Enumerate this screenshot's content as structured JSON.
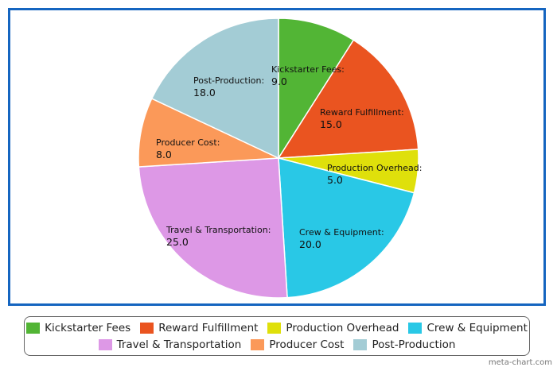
{
  "chart_data": {
    "type": "pie",
    "slices": [
      {
        "name": "Kickstarter Fees",
        "label": "Kickstarter Fees:",
        "value": 9.0,
        "value_text": "9.0",
        "color": "#52b535"
      },
      {
        "name": "Reward Fulfillment",
        "label": "Reward Fulfillment:",
        "value": 15.0,
        "value_text": "15.0",
        "color": "#ea5420"
      },
      {
        "name": "Production Overhead",
        "label": "Production Overhead:",
        "value": 5.0,
        "value_text": "5.0",
        "color": "#dfe00b"
      },
      {
        "name": "Crew & Equipment",
        "label": "Crew & Equipment:",
        "value": 20.0,
        "value_text": "20.0",
        "color": "#29c8e6"
      },
      {
        "name": "Travel & Transportation",
        "label": "Travel & Transportation:",
        "value": 25.0,
        "value_text": "25.0",
        "color": "#dd98e6"
      },
      {
        "name": "Producer Cost",
        "label": "Producer Cost:",
        "value": 8.0,
        "value_text": "8.0",
        "color": "#fb9959"
      },
      {
        "name": "Post-Production",
        "label": "Post-Production:",
        "value": 18.0,
        "value_text": "18.0",
        "color": "#a3ccd5"
      }
    ],
    "legend_position": "bottom",
    "frame_color": "#1565c0"
  },
  "legend": {
    "row1": [
      {
        "label": "Kickstarter Fees",
        "color": "#52b535"
      },
      {
        "label": "Reward Fulfillment",
        "color": "#ea5420"
      },
      {
        "label": "Production Overhead",
        "color": "#dfe00b"
      },
      {
        "label": "Crew & Equipment",
        "color": "#29c8e6"
      }
    ],
    "row2": [
      {
        "label": "Travel & Transportation",
        "color": "#dd98e6"
      },
      {
        "label": "Producer Cost",
        "color": "#fb9959"
      },
      {
        "label": "Post-Production",
        "color": "#a3ccd5"
      }
    ]
  },
  "watermark": "meta-chart.com"
}
